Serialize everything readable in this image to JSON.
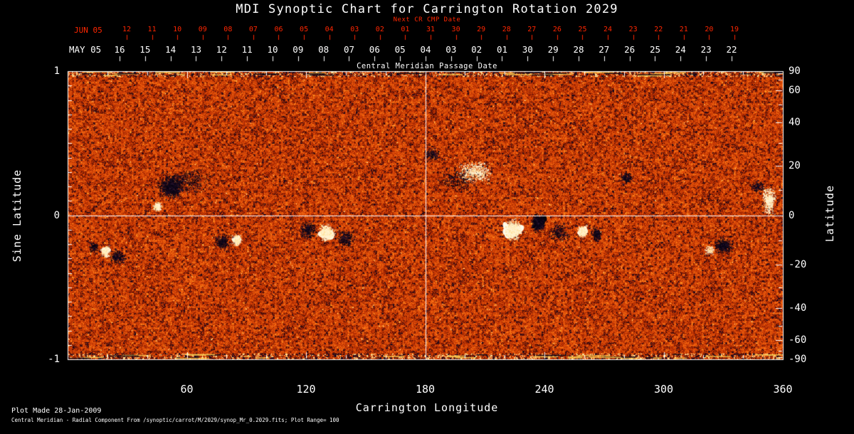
{
  "palette": {
    "background": "#000000",
    "frame": "#ffffff",
    "red_axis": "#ff2600",
    "text": "#ffffff"
  },
  "title": "MDI Synoptic Chart for Carrington Rotation 2029",
  "top_axis": {
    "red": {
      "axis_title": "Next CR CMP Date",
      "month_label": "JUN 05",
      "tick_labels": [
        "12",
        "11",
        "10",
        "09",
        "08",
        "07",
        "06",
        "05",
        "04",
        "03",
        "02",
        "01",
        "31",
        "30",
        "29",
        "28",
        "27",
        "26",
        "25",
        "24",
        "23",
        "22",
        "21",
        "20",
        "19"
      ]
    },
    "white": {
      "month_label": "MAY 05",
      "axis_title": "Central Meridian Passage Date",
      "tick_labels": [
        "16",
        "15",
        "14",
        "13",
        "12",
        "11",
        "10",
        "09",
        "08",
        "07",
        "06",
        "05",
        "04",
        "03",
        "02",
        "01",
        "30",
        "29",
        "28",
        "27",
        "26",
        "25",
        "24",
        "23",
        "22"
      ]
    }
  },
  "x_axis": {
    "title": "Carrington Longitude",
    "tick_labels": [
      "60",
      "120",
      "180",
      "240",
      "300",
      "360"
    ],
    "tick_values": [
      60,
      120,
      180,
      240,
      300,
      360
    ],
    "range": [
      0,
      360
    ]
  },
  "y_axis_left": {
    "title": "Sine Latitude",
    "tick_labels": [
      "1",
      "0",
      "-1"
    ],
    "tick_values": [
      1,
      0,
      -1
    ],
    "range": [
      -1,
      1
    ]
  },
  "y_axis_right": {
    "title": "Latitude",
    "tick_labels": [
      "90",
      "60",
      "40",
      "20",
      "0",
      "-20",
      "-40",
      "-60",
      "-90"
    ],
    "tick_values": [
      90,
      60,
      40,
      20,
      0,
      -20,
      -40,
      -60,
      -90
    ]
  },
  "footer": {
    "line1": "Plot Made 28-Jan-2009",
    "line2": "Central Meridian - Radial Component From  /synoptic/carrot/M/2029/synop_Mr_0.2029.fits; Plot Range=  100"
  },
  "chart_data": {
    "type": "heatmap",
    "title": "MDI Synoptic Chart for Carrington Rotation 2029",
    "xlabel": "Carrington Longitude",
    "ylabel": "Sine Latitude (left) / Latitude (right)",
    "xlim": [
      0,
      360
    ],
    "ylim_sine_latitude": [
      -1,
      1
    ],
    "plot_range_gauss": 100,
    "colormap": "red-orange solar magnetogram; dark specks = negative polarity, white patches = positive polarity",
    "quiet_sun_description": "speckled red-orange salt-and-pepper magnetic noise over whole disk, with yellow/dark horizontal streaks at the polar edges",
    "crosshair": {
      "carrington_longitude": 180,
      "sine_latitude": 0
    },
    "active_regions": [
      {
        "lon": 52,
        "sin_lat": 0.2,
        "polarity": "negative",
        "lon_spread": 8,
        "sin_spread": 0.1,
        "dots": 900,
        "core": 4
      },
      {
        "lon": 45,
        "sin_lat": 0.06,
        "polarity": "positive",
        "lon_spread": 3,
        "sin_spread": 0.04,
        "dots": 160,
        "core": 3
      },
      {
        "lon": 61,
        "sin_lat": 0.24,
        "polarity": "negative",
        "lon_spread": 14,
        "sin_spread": 0.11,
        "dots": 350,
        "core": 0
      },
      {
        "lon": 19,
        "sin_lat": -0.25,
        "polarity": "positive",
        "lon_spread": 3,
        "sin_spread": 0.05,
        "dots": 200,
        "core": 4
      },
      {
        "lon": 25,
        "sin_lat": -0.29,
        "polarity": "negative",
        "lon_spread": 5,
        "sin_spread": 0.06,
        "dots": 240,
        "core": 0
      },
      {
        "lon": 13,
        "sin_lat": -0.22,
        "polarity": "negative",
        "lon_spread": 3,
        "sin_spread": 0.05,
        "dots": 130,
        "core": 0
      },
      {
        "lon": 85,
        "sin_lat": -0.17,
        "polarity": "positive",
        "lon_spread": 3,
        "sin_spread": 0.05,
        "dots": 220,
        "core": 4
      },
      {
        "lon": 78,
        "sin_lat": -0.18,
        "polarity": "negative",
        "lon_spread": 5,
        "sin_spread": 0.07,
        "dots": 260,
        "core": 0
      },
      {
        "lon": 130,
        "sin_lat": -0.12,
        "polarity": "positive",
        "lon_spread": 5,
        "sin_spread": 0.07,
        "dots": 550,
        "core": 7
      },
      {
        "lon": 121,
        "sin_lat": -0.1,
        "polarity": "negative",
        "lon_spread": 5,
        "sin_spread": 0.08,
        "dots": 300,
        "core": 0
      },
      {
        "lon": 140,
        "sin_lat": -0.16,
        "polarity": "negative",
        "lon_spread": 5,
        "sin_spread": 0.08,
        "dots": 260,
        "core": 0
      },
      {
        "lon": 205,
        "sin_lat": 0.3,
        "polarity": "positive",
        "lon_spread": 11,
        "sin_spread": 0.09,
        "dots": 480,
        "core": 0
      },
      {
        "lon": 196,
        "sin_lat": 0.25,
        "polarity": "negative",
        "lon_spread": 12,
        "sin_spread": 0.1,
        "dots": 220,
        "core": 0
      },
      {
        "lon": 224,
        "sin_lat": -0.1,
        "polarity": "positive",
        "lon_spread": 5,
        "sin_spread": 0.09,
        "dots": 650,
        "core": 9
      },
      {
        "lon": 237,
        "sin_lat": -0.05,
        "polarity": "negative",
        "lon_spread": 4,
        "sin_spread": 0.07,
        "dots": 520,
        "core": 8
      },
      {
        "lon": 247,
        "sin_lat": -0.12,
        "polarity": "negative",
        "lon_spread": 6,
        "sin_spread": 0.08,
        "dots": 220,
        "core": 0
      },
      {
        "lon": 259,
        "sin_lat": -0.11,
        "polarity": "positive",
        "lon_spread": 3,
        "sin_spread": 0.05,
        "dots": 260,
        "core": 5
      },
      {
        "lon": 266,
        "sin_lat": -0.13,
        "polarity": "negative",
        "lon_spread": 3,
        "sin_spread": 0.06,
        "dots": 190,
        "core": 0
      },
      {
        "lon": 281,
        "sin_lat": 0.26,
        "polarity": "negative",
        "lon_spread": 4,
        "sin_spread": 0.05,
        "dots": 160,
        "core": 0
      },
      {
        "lon": 330,
        "sin_lat": -0.21,
        "polarity": "negative",
        "lon_spread": 6,
        "sin_spread": 0.07,
        "dots": 380,
        "core": 3
      },
      {
        "lon": 323,
        "sin_lat": -0.24,
        "polarity": "positive",
        "lon_spread": 3,
        "sin_spread": 0.04,
        "dots": 90,
        "core": 0
      },
      {
        "lon": 353,
        "sin_lat": 0.1,
        "polarity": "positive",
        "lon_spread": 4,
        "sin_spread": 0.12,
        "dots": 380,
        "core": 4
      },
      {
        "lon": 183,
        "sin_lat": 0.42,
        "polarity": "negative",
        "lon_spread": 5,
        "sin_spread": 0.06,
        "dots": 150,
        "core": 0
      },
      {
        "lon": 347,
        "sin_lat": 0.2,
        "polarity": "negative",
        "lon_spread": 5,
        "sin_spread": 0.06,
        "dots": 130,
        "core": 0
      }
    ]
  }
}
